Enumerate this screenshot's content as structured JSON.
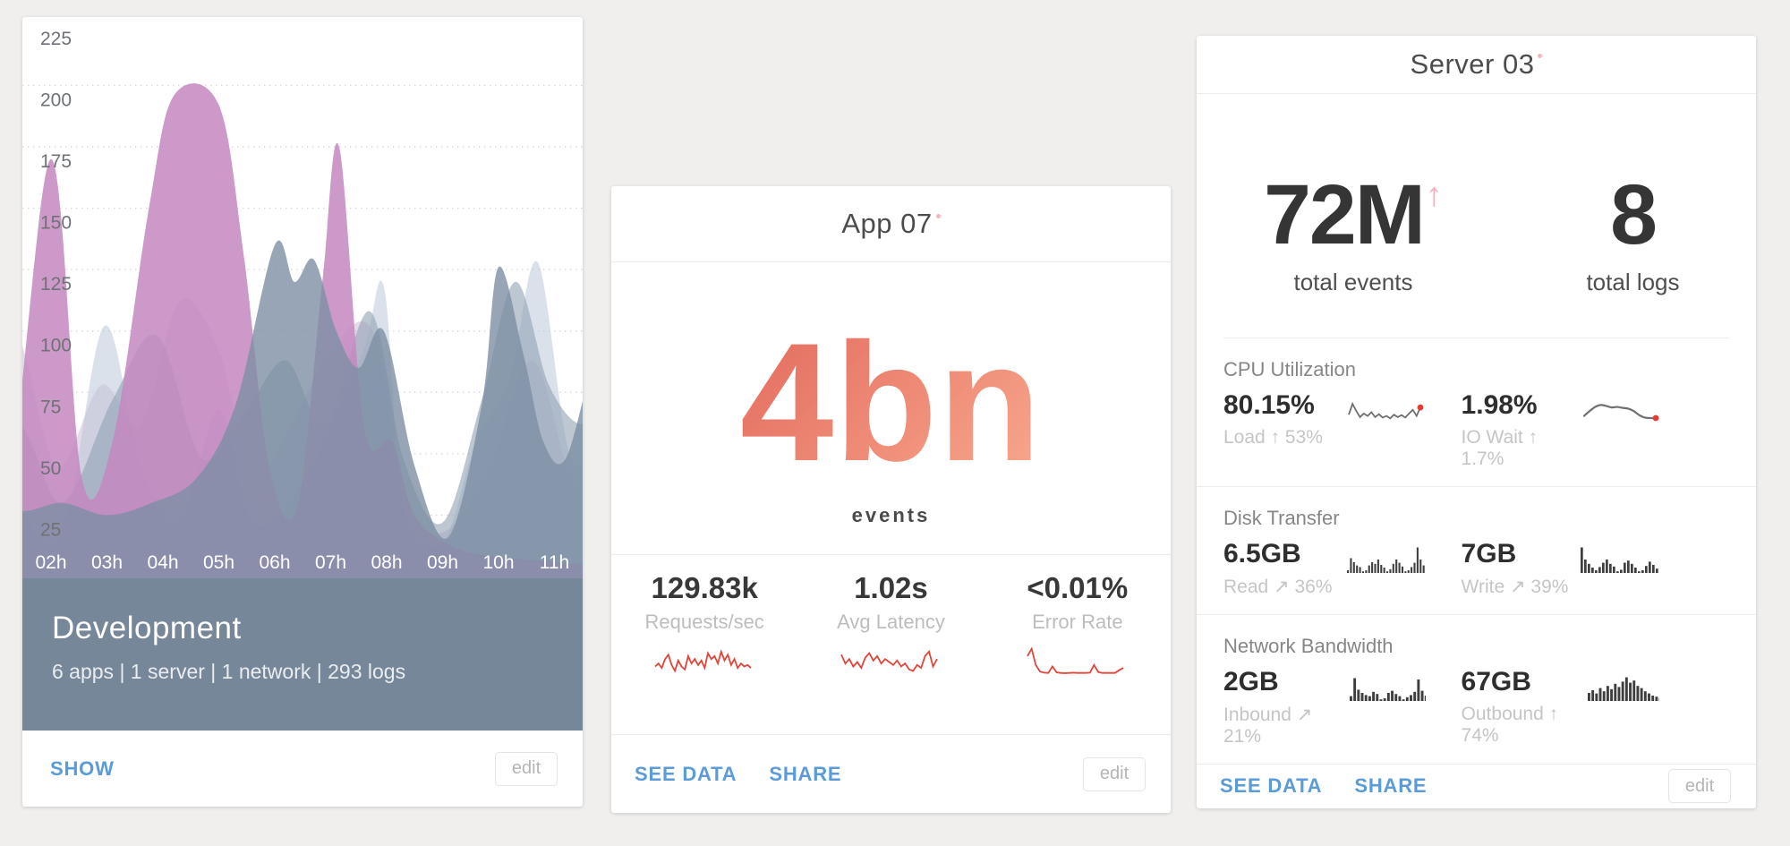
{
  "colors": {
    "page_bg": "#f0efee",
    "card_bg": "#ffffff",
    "link_blue": "#5b9bd8",
    "accent_pink": "#f4b6c0",
    "panel_slate": "#76879a",
    "coral_gradient_start": "#e2675c",
    "coral_gradient_end": "#f9ab8f",
    "spark_red": "#e0453a",
    "spark_gray": "#6f6f6f",
    "spark_dot_red": "#e63b2e",
    "bar_dark": "#3e3e3e"
  },
  "cards": {
    "development": {
      "title": "Development",
      "subtitle": "6 apps | 1 server | 1 network | 293 logs",
      "footer": {
        "show": "SHOW",
        "edit": "edit"
      },
      "chart_data": {
        "type": "area",
        "title": "Development",
        "x_labels": [
          "02h",
          "03h",
          "04h",
          "05h",
          "06h",
          "07h",
          "08h",
          "09h",
          "10h",
          "11h"
        ],
        "y_ticks": [
          225,
          200,
          175,
          150,
          125,
          100,
          75,
          50,
          25
        ],
        "ylim": [
          0,
          225
        ],
        "grid": "dotted-horizontal",
        "legend": "none",
        "series": [
          {
            "name": "lavender",
            "color": "#c9b6d4",
            "opacity": 0.5,
            "points": [
              [
                0.5,
                75
              ],
              [
                1.35,
                100
              ],
              [
                2.1,
                45
              ],
              [
                2.9,
                78
              ],
              [
                3.6,
                62
              ],
              [
                4.3,
                112
              ],
              [
                5.0,
                92
              ],
              [
                5.6,
                40
              ],
              [
                6.3,
                62
              ],
              [
                7.0,
                92
              ],
              [
                7.75,
                100
              ],
              [
                8.35,
                32
              ],
              [
                9.0,
                18
              ],
              [
                9.8,
                42
              ],
              [
                10.6,
                88
              ],
              [
                11.3,
                40
              ],
              [
                12,
                24
              ]
            ]
          },
          {
            "name": "steel-light",
            "color": "#bcc8d8",
            "opacity": 0.55,
            "points": [
              [
                0.5,
                105
              ],
              [
                1.4,
                32
              ],
              [
                2.2,
                18
              ],
              [
                2.95,
                102
              ],
              [
                3.6,
                45
              ],
              [
                4.3,
                22
              ],
              [
                5.0,
                68
              ],
              [
                5.6,
                22
              ],
              [
                6.5,
                38
              ],
              [
                7.55,
                90
              ],
              [
                7.95,
                118
              ],
              [
                8.3,
                28
              ],
              [
                9.0,
                14
              ],
              [
                9.6,
                55
              ],
              [
                10.2,
                80
              ],
              [
                10.7,
                128
              ],
              [
                11.3,
                48
              ],
              [
                12,
                62
              ]
            ]
          },
          {
            "name": "slate-medium",
            "color": "#91a1b4",
            "opacity": 0.6,
            "points": [
              [
                0.5,
                35
              ],
              [
                1.4,
                62
              ],
              [
                2.2,
                30
              ],
              [
                3.1,
                72
              ],
              [
                3.9,
                98
              ],
              [
                4.7,
                48
              ],
              [
                5.5,
                68
              ],
              [
                6.2,
                88
              ],
              [
                6.9,
                62
              ],
              [
                7.7,
                108
              ],
              [
                8.3,
                48
              ],
              [
                9.0,
                22
              ],
              [
                9.7,
                72
              ],
              [
                10.3,
                120
              ],
              [
                10.9,
                78
              ],
              [
                11.5,
                62
              ],
              [
                12,
                78
              ]
            ]
          },
          {
            "name": "orchid",
            "color": "#c487c0",
            "opacity": 0.85,
            "points": [
              [
                0.5,
                120
              ],
              [
                1.2,
                38
              ],
              [
                2.0,
                170
              ],
              [
                2.55,
                40
              ],
              [
                3.1,
                55
              ],
              [
                3.75,
                150
              ],
              [
                4.2,
                196
              ],
              [
                5.0,
                192
              ],
              [
                5.45,
                130
              ],
              [
                5.9,
                45
              ],
              [
                6.4,
                28
              ],
              [
                6.85,
                120
              ],
              [
                7.15,
                175
              ],
              [
                7.6,
                60
              ],
              [
                8.1,
                55
              ],
              [
                8.5,
                25
              ],
              [
                9.2,
                12
              ],
              [
                10,
                8
              ],
              [
                11,
                6
              ],
              [
                12,
                4
              ]
            ]
          },
          {
            "name": "slate-dark",
            "color": "#7d8fa4",
            "opacity": 0.8,
            "points": [
              [
                0.5,
                55
              ],
              [
                1.3,
                28
              ],
              [
                2.2,
                30
              ],
              [
                3.0,
                25
              ],
              [
                3.8,
                30
              ],
              [
                4.6,
                40
              ],
              [
                5.3,
                70
              ],
              [
                6.0,
                135
              ],
              [
                6.35,
                120
              ],
              [
                6.7,
                129
              ],
              [
                7.1,
                100
              ],
              [
                7.5,
                85
              ],
              [
                7.95,
                100
              ],
              [
                8.5,
                45
              ],
              [
                9.1,
                16
              ],
              [
                9.7,
                70
              ],
              [
                10.0,
                126
              ],
              [
                10.45,
                90
              ],
              [
                10.8,
                55
              ],
              [
                11.2,
                48
              ],
              [
                11.7,
                88
              ],
              [
                12,
                95
              ]
            ]
          }
        ]
      }
    },
    "app07": {
      "title": "App 07",
      "big_value": "4bn",
      "big_label": "events",
      "stats": [
        {
          "value": "129.83k",
          "label": "Requests/sec",
          "spark_type": "line-jagged",
          "spark_color": "#e0453a",
          "spark": [
            35,
            45,
            30,
            60,
            75,
            40,
            20,
            55,
            35,
            25,
            70,
            45,
            60,
            40,
            55,
            30,
            80,
            60,
            70,
            45,
            85,
            55,
            75,
            40,
            60,
            30,
            45,
            35,
            40,
            30
          ]
        },
        {
          "value": "1.02s",
          "label": "Avg Latency",
          "spark_type": "line-jagged",
          "spark_color": "#e0453a",
          "spark": [
            75,
            45,
            60,
            35,
            50,
            30,
            65,
            80,
            55,
            70,
            45,
            60,
            50,
            40,
            55,
            35,
            45,
            25,
            20,
            40,
            30,
            70,
            85,
            35,
            60
          ]
        },
        {
          "value": "<0.01%",
          "label": "Error Rate",
          "spark_type": "line-jagged",
          "spark_color": "#e0453a",
          "spark": [
            70,
            95,
            40,
            18,
            14,
            13,
            35,
            15,
            13,
            12,
            13,
            14,
            13,
            13,
            13,
            14,
            40,
            16,
            13,
            13,
            13,
            13,
            22,
            30
          ]
        }
      ],
      "footer": {
        "see_data": "SEE DATA",
        "share": "SHARE",
        "edit": "edit"
      }
    },
    "server03": {
      "title": "Server 03",
      "totals": [
        {
          "value": "72M",
          "trend_arrow": "↑",
          "label": "total events"
        },
        {
          "value": "8",
          "label": "total logs"
        }
      ],
      "sections": [
        {
          "title": "CPU Utilization",
          "metrics": [
            {
              "value": "80.15%",
              "label": "Load ↑ 53%",
              "spark_type": "line-jagged",
              "spark_color": "#6f6f6f",
              "spark_dot": true,
              "spark": [
                40,
                85,
                55,
                30,
                45,
                35,
                50,
                30,
                42,
                28,
                35,
                25,
                40,
                30,
                38,
                28,
                45,
                60,
                35,
                70
              ]
            },
            {
              "value": "1.98%",
              "label": "IO Wait ↑ 1.7%",
              "spark_type": "line-smooth",
              "spark_color": "#6f6f6f",
              "spark_dot": true,
              "spark": [
                35,
                55,
                72,
                80,
                76,
                70,
                72,
                68,
                65,
                55,
                38,
                28,
                26,
                26
              ]
            }
          ]
        },
        {
          "title": "Disk Transfer",
          "metrics": [
            {
              "value": "6.5GB",
              "label": "Read ↗ 36%",
              "spark_type": "bars",
              "spark_color": "#3e3e3e",
              "spark": [
                10,
                55,
                40,
                28,
                22,
                6,
                10,
                28,
                40,
                34,
                50,
                30,
                20,
                6,
                14,
                34,
                50,
                38,
                24,
                6,
                10,
                22,
                38,
                95,
                50,
                28
              ]
            },
            {
              "value": "7GB",
              "label": "Write ↗ 39%",
              "spark_type": "bars",
              "spark_color": "#3e3e3e",
              "spark": [
                95,
                50,
                34,
                20,
                10,
                22,
                38,
                50,
                34,
                24,
                6,
                12,
                38,
                46,
                34,
                20,
                6,
                10,
                26,
                42,
                30,
                16
              ]
            }
          ]
        },
        {
          "title": "Network Bandwidth",
          "metrics": [
            {
              "value": "2GB",
              "label": "Inbound ↗ 21%",
              "spark_type": "bars",
              "spark_color": "#3e3e3e",
              "spark": [
                18,
                85,
                42,
                30,
                22,
                18,
                34,
                26,
                6,
                10,
                30,
                38,
                26,
                18,
                6,
                14,
                22,
                34,
                80,
                38,
                20
              ]
            },
            {
              "value": "67GB",
              "label": "Outbound ↑ 74%",
              "spark_type": "bars",
              "spark_color": "#3e3e3e",
              "spark": [
                30,
                40,
                28,
                48,
                36,
                56,
                44,
                64,
                52,
                72,
                88,
                68,
                76,
                56,
                48,
                36,
                28,
                20,
                16,
                12,
                8
              ]
            }
          ]
        }
      ],
      "footer": {
        "see_data": "SEE DATA",
        "share": "SHARE",
        "edit": "edit"
      }
    }
  }
}
